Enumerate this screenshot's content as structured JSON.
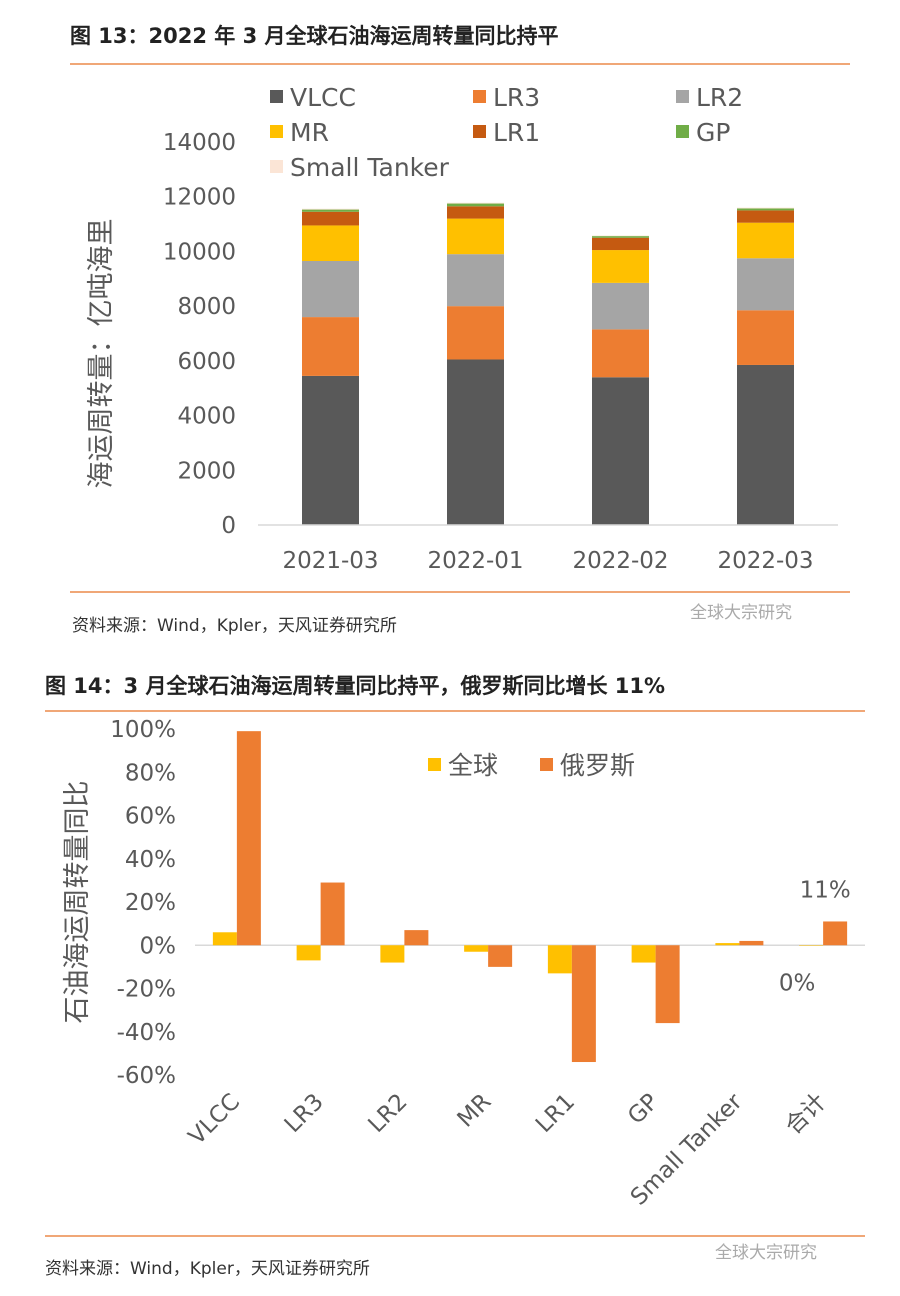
{
  "figure13": {
    "title": "图 13：2022 年 3 月全球石油海运周转量同比持平",
    "source": "资料来源：Wind，Kpler，天风证券研究所",
    "watermark": "全球大宗研究"
  },
  "figure14": {
    "title": "图 14：3 月全球石油海运周转量同比持平，俄罗斯同比增长 11%",
    "source": "资料来源：Wind，Kpler，天风证券研究所",
    "watermark": "全球大宗研究"
  },
  "chart_data": [
    {
      "type": "bar",
      "stacked": true,
      "title": "",
      "ylabel": "海运周转量：亿吨海里",
      "xlabel": "",
      "ylim": [
        0,
        14000
      ],
      "yticks": [
        0,
        2000,
        4000,
        6000,
        8000,
        10000,
        12000,
        14000
      ],
      "grid": false,
      "legend_position": "top",
      "categories": [
        "2021-03",
        "2022-01",
        "2022-02",
        "2022-03"
      ],
      "series": [
        {
          "name": "VLCC",
          "color": "#595959",
          "values": [
            5450,
            6050,
            5400,
            5850
          ]
        },
        {
          "name": "LR3",
          "color": "#ed7d31",
          "values": [
            2150,
            1950,
            1750,
            2000
          ]
        },
        {
          "name": "LR2",
          "color": "#a5a5a5",
          "values": [
            2050,
            1900,
            1700,
            1900
          ]
        },
        {
          "name": "MR",
          "color": "#ffc000",
          "values": [
            1300,
            1300,
            1200,
            1300
          ]
        },
        {
          "name": "LR1",
          "color": "#c55a11",
          "values": [
            500,
            450,
            450,
            450
          ]
        },
        {
          "name": "GP",
          "color": "#70ad47",
          "values": [
            80,
            100,
            60,
            70
          ]
        },
        {
          "name": "Small Tanker",
          "color": "#fbe5d6",
          "values": [
            30,
            30,
            20,
            30
          ]
        }
      ]
    },
    {
      "type": "bar",
      "title": "",
      "ylabel": "石油海运周转量同比",
      "xlabel": "",
      "ylim": [
        -0.6,
        1.0
      ],
      "yticks": [
        "100%",
        "80%",
        "60%",
        "40%",
        "20%",
        "0%",
        "-20%",
        "-40%",
        "-60%"
      ],
      "grid": false,
      "legend_position": "top-right",
      "categories": [
        "VLCC",
        "LR3",
        "LR2",
        "MR",
        "LR1",
        "GP",
        "Small Tanker",
        "合计"
      ],
      "series": [
        {
          "name": "全球",
          "color": "#ffc000",
          "values": [
            0.06,
            -0.07,
            -0.08,
            -0.03,
            -0.13,
            -0.08,
            0.01,
            0.0
          ]
        },
        {
          "name": "俄罗斯",
          "color": "#ed7d31",
          "values": [
            0.99,
            0.29,
            0.07,
            -0.1,
            -0.54,
            -0.36,
            0.02,
            0.11
          ]
        }
      ],
      "data_labels": [
        {
          "series": "全球",
          "category": "合计",
          "text": "0%"
        },
        {
          "series": "俄罗斯",
          "category": "合计",
          "text": "11%"
        }
      ]
    }
  ]
}
